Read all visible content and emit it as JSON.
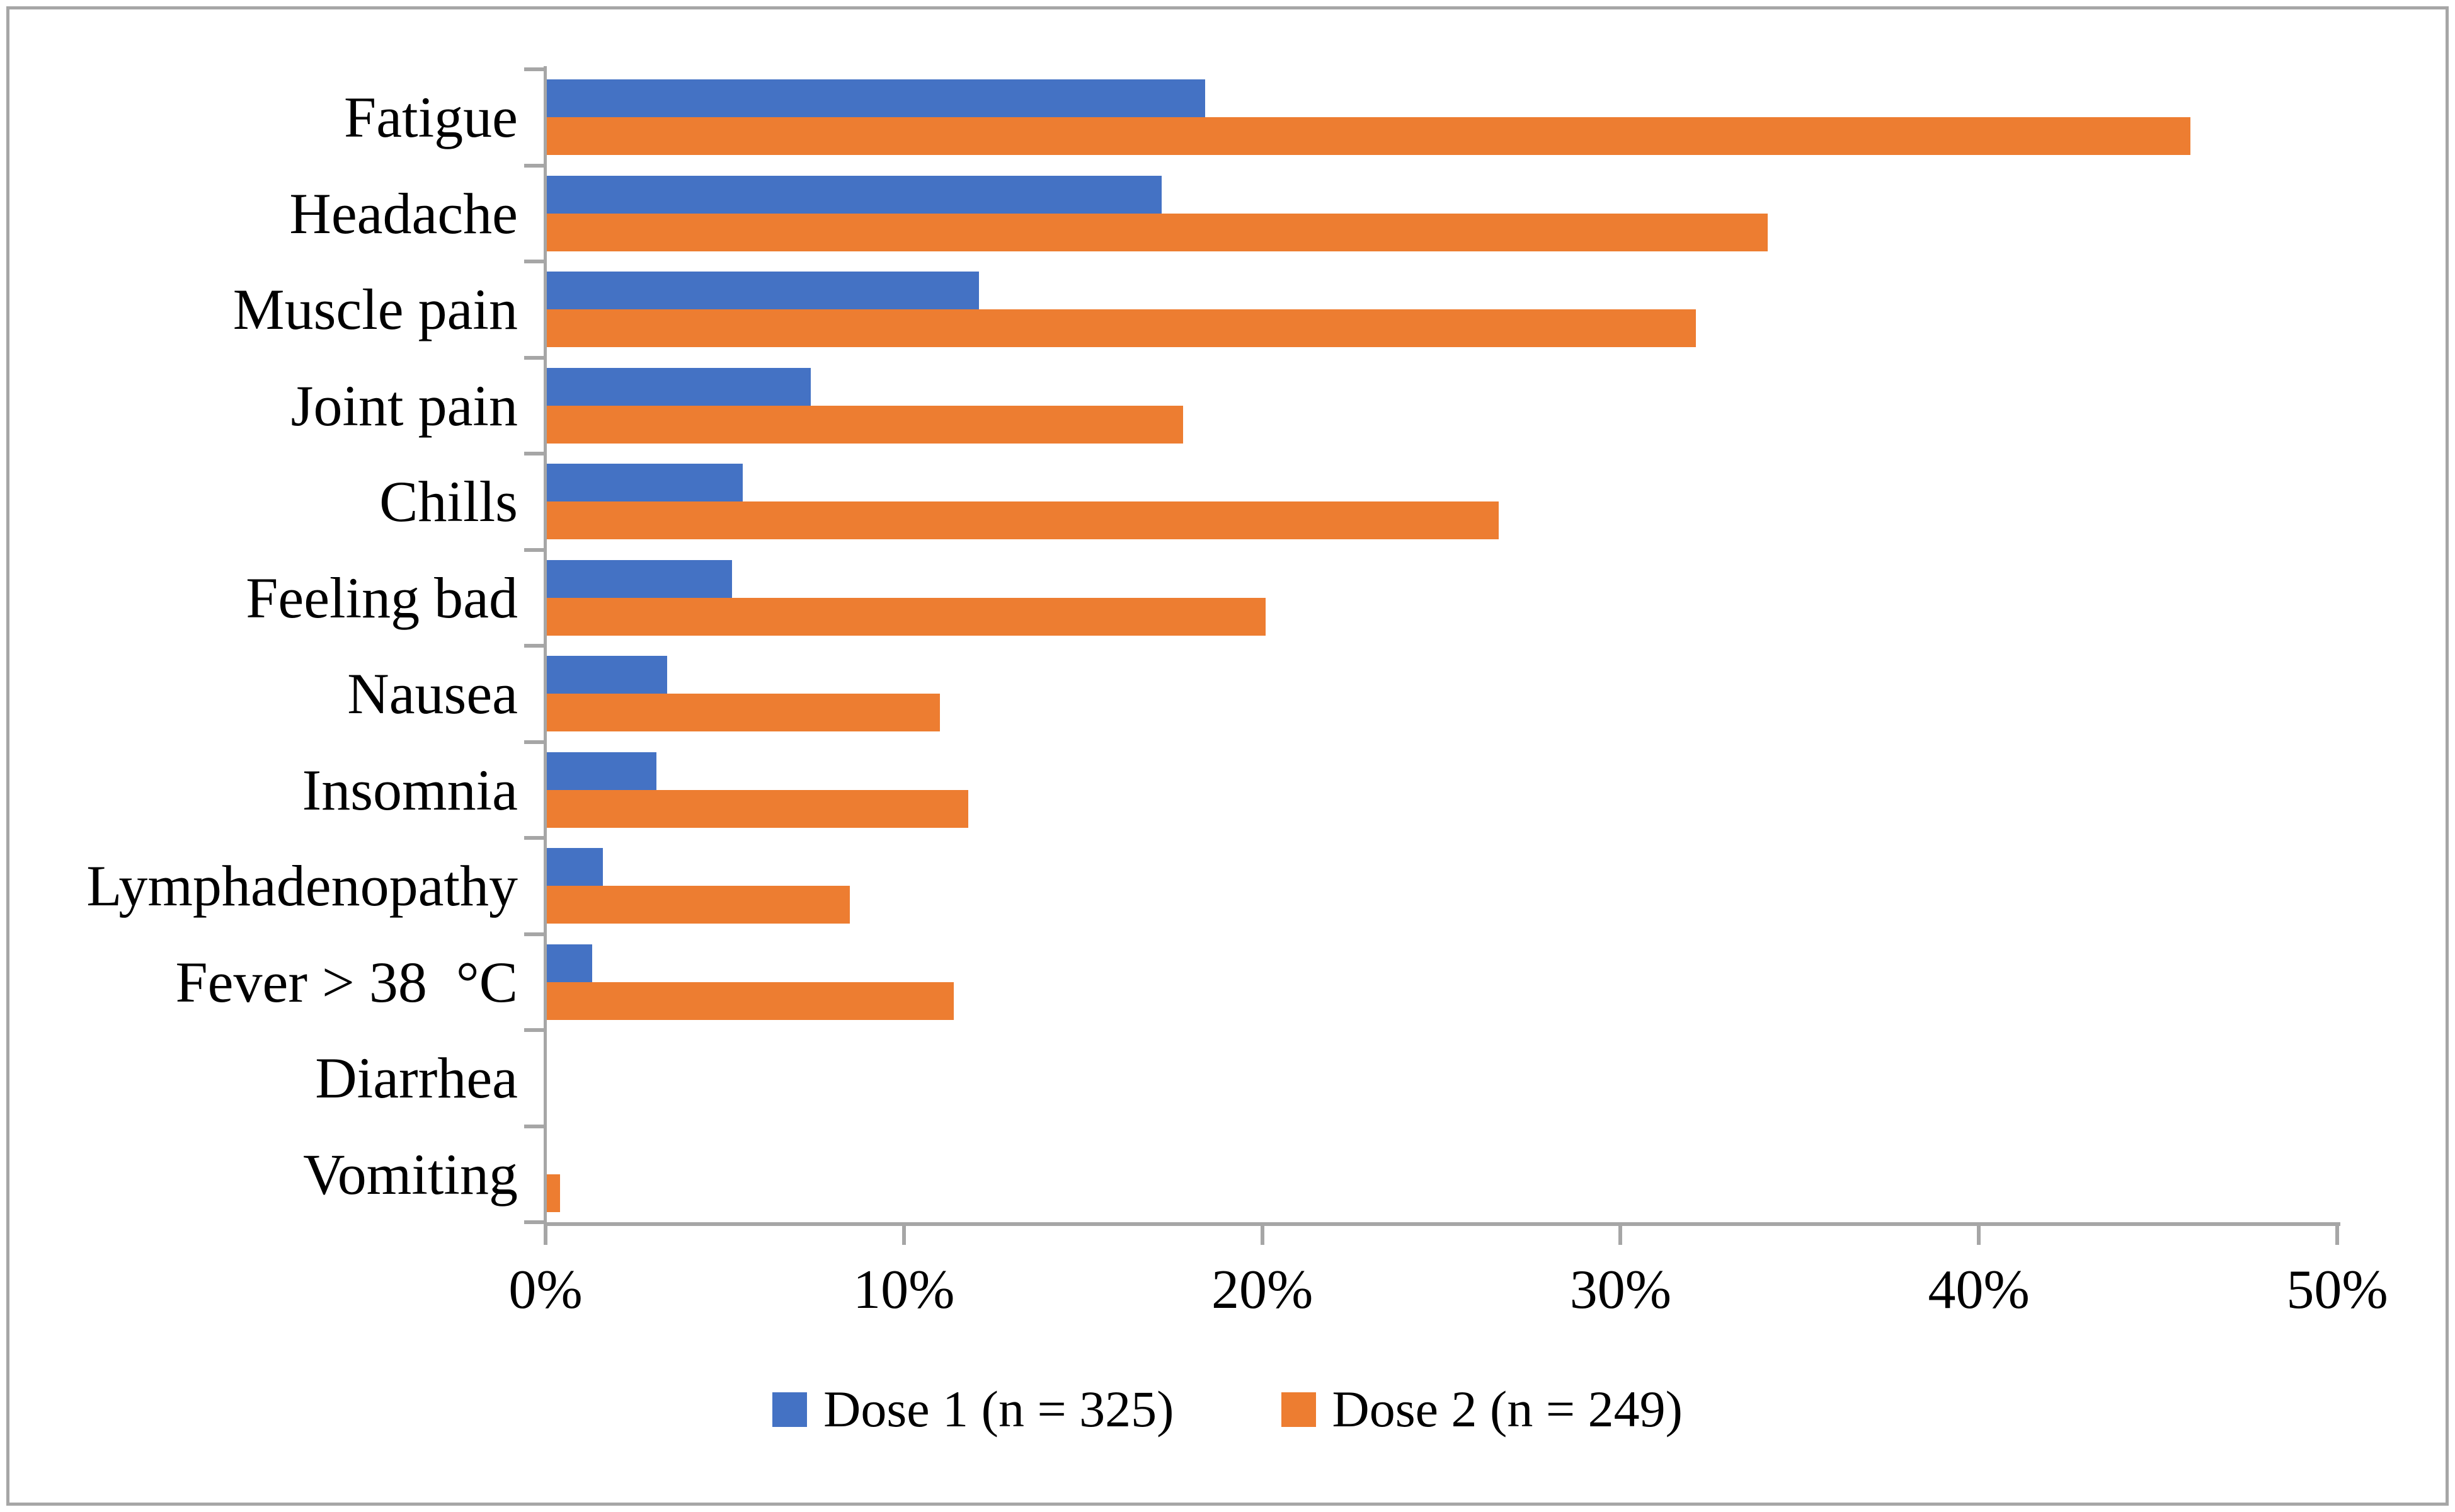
{
  "figure": {
    "background_color": "#ffffff",
    "border_color": "#a6a6a6",
    "axis_color": "#a6a6a6",
    "text_color": "#000000"
  },
  "chart_data": {
    "type": "bar",
    "orientation": "horizontal",
    "title": "",
    "xlabel": "",
    "ylabel": "",
    "xlim": [
      0,
      50
    ],
    "x_ticks": [
      "0%",
      "10%",
      "20%",
      "30%",
      "40%",
      "50%"
    ],
    "x_tick_values": [
      0,
      10,
      20,
      30,
      40,
      50
    ],
    "grid": false,
    "legend_position": "bottom",
    "categories": [
      "Fatigue",
      "Headache",
      "Muscle pain",
      "Joint pain",
      "Chills",
      "Feeling bad",
      "Nausea",
      "Insomnia",
      "Lymphadenopathy",
      "Fever > 38  °C",
      "Diarrhea",
      "Vomiting"
    ],
    "series": [
      {
        "name": "Dose 1 (n = 325)",
        "color": "#4472C4",
        "values": [
          18.4,
          17.2,
          12.1,
          7.4,
          5.5,
          5.2,
          3.4,
          3.1,
          1.6,
          1.3,
          0,
          0
        ]
      },
      {
        "name": "Dose 2 (n = 249)",
        "color": "#ED7D31",
        "values": [
          45.9,
          34.1,
          32.1,
          17.8,
          26.6,
          20.1,
          11.0,
          11.8,
          8.5,
          11.4,
          0,
          0.4
        ]
      }
    ]
  },
  "legend": {
    "items": [
      {
        "label": "Dose 1 (n = 325)",
        "color": "#4472C4"
      },
      {
        "label": "Dose 2 (n = 249)",
        "color": "#ED7D31"
      }
    ]
  }
}
